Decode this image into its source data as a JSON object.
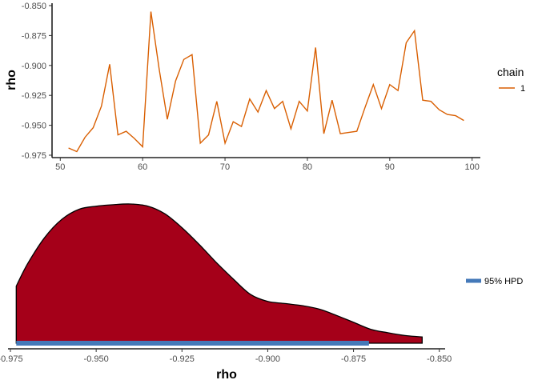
{
  "chart_data": [
    {
      "type": "line",
      "xlabel": "",
      "ylabel": "rho",
      "xlim": [
        49,
        101
      ],
      "ylim": [
        -0.977,
        -0.848
      ],
      "x_ticks": [
        "50",
        "60",
        "70",
        "80",
        "90",
        "100"
      ],
      "y_ticks": [
        "-0.850",
        "-0.875",
        "-0.900",
        "-0.925",
        "-0.950",
        "-0.975"
      ],
      "legend": {
        "title": "chain",
        "placement": "right",
        "entries": [
          "1"
        ]
      },
      "colors": {
        "line": "#d95f02",
        "axis": "#222222"
      },
      "series": [
        {
          "name": "1",
          "x": [
            51,
            52,
            53,
            54,
            55,
            56,
            57,
            58,
            59,
            60,
            61,
            62,
            63,
            64,
            65,
            66,
            67,
            68,
            69,
            70,
            71,
            72,
            73,
            74,
            75,
            76,
            77,
            78,
            79,
            80,
            81,
            82,
            83,
            84,
            85,
            86,
            87,
            88,
            89,
            90,
            91,
            92,
            93,
            94,
            95,
            96,
            97,
            98,
            99
          ],
          "values": [
            -0.969,
            -0.972,
            -0.96,
            -0.952,
            -0.934,
            -0.899,
            -0.958,
            -0.955,
            -0.961,
            -0.968,
            -0.855,
            -0.903,
            -0.945,
            -0.913,
            -0.895,
            -0.891,
            -0.965,
            -0.958,
            -0.93,
            -0.965,
            -0.947,
            -0.951,
            -0.928,
            -0.939,
            -0.921,
            -0.936,
            -0.93,
            -0.953,
            -0.93,
            -0.938,
            -0.885,
            -0.957,
            -0.929,
            -0.957,
            -0.956,
            -0.955,
            -0.935,
            -0.916,
            -0.936,
            -0.916,
            -0.921,
            -0.881,
            -0.871,
            -0.929,
            -0.93,
            -0.937,
            -0.941,
            -0.942,
            -0.946
          ]
        }
      ]
    },
    {
      "type": "area",
      "xlabel": "rho",
      "ylabel": "",
      "xlim": [
        -0.9757,
        -0.8483
      ],
      "x_ticks": [
        "-0.975",
        "-0.950",
        "-0.925",
        "-0.900",
        "-0.875",
        "-0.850"
      ],
      "legend": {
        "placement": "right",
        "entries": [
          "95% HPD"
        ]
      },
      "colors": {
        "fill": "#a50019",
        "hpd": "#4479b9",
        "outline": "#000000"
      },
      "density": {
        "x": [
          -0.9733,
          -0.97,
          -0.965,
          -0.96,
          -0.955,
          -0.95,
          -0.945,
          -0.94,
          -0.935,
          -0.93,
          -0.925,
          -0.92,
          -0.915,
          -0.91,
          -0.905,
          -0.9,
          -0.895,
          -0.89,
          -0.885,
          -0.88,
          -0.875,
          -0.87,
          -0.865,
          -0.86,
          -0.855
        ],
        "values": [
          0.41,
          0.57,
          0.76,
          0.89,
          0.962,
          0.984,
          0.995,
          1.0,
          0.985,
          0.93,
          0.83,
          0.71,
          0.58,
          0.46,
          0.35,
          0.3,
          0.285,
          0.27,
          0.245,
          0.2,
          0.15,
          0.1,
          0.075,
          0.055,
          0.045
        ]
      },
      "hpd_interval": [
        -0.9733,
        -0.8705
      ],
      "hpd_label": "95% HPD"
    }
  ]
}
